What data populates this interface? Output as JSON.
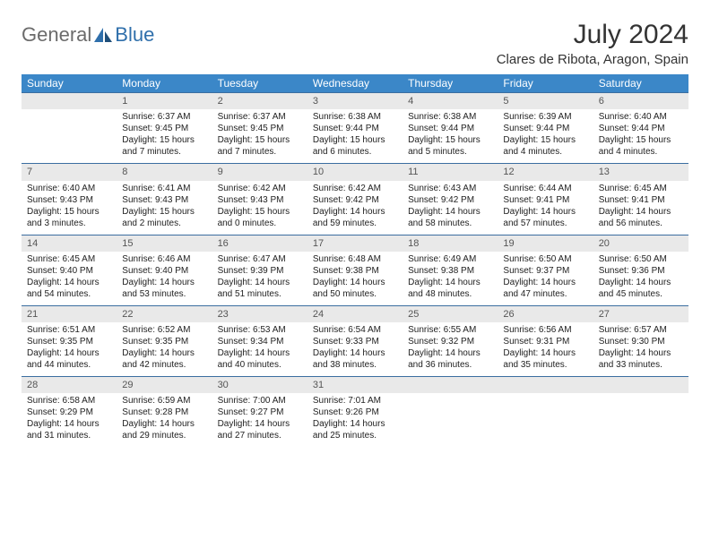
{
  "logo": {
    "general": "General",
    "blue": "Blue"
  },
  "header": {
    "month_title": "July 2024",
    "location": "Clares de Ribota, Aragon, Spain"
  },
  "colors": {
    "header_bg": "#3b87c8",
    "header_text": "#ffffff",
    "daynum_bg": "#e9e9e9",
    "daynum_text": "#555555",
    "body_text": "#222222",
    "row_separator": "#3b6ea0",
    "logo_gray": "#6b6b6b",
    "logo_blue": "#2f6fab"
  },
  "weekdays": [
    "Sunday",
    "Monday",
    "Tuesday",
    "Wednesday",
    "Thursday",
    "Friday",
    "Saturday"
  ],
  "weeks": [
    [
      {
        "num": "",
        "sunrise": "",
        "sunset": "",
        "daylight": ""
      },
      {
        "num": "1",
        "sunrise": "Sunrise: 6:37 AM",
        "sunset": "Sunset: 9:45 PM",
        "daylight": "Daylight: 15 hours and 7 minutes."
      },
      {
        "num": "2",
        "sunrise": "Sunrise: 6:37 AM",
        "sunset": "Sunset: 9:45 PM",
        "daylight": "Daylight: 15 hours and 7 minutes."
      },
      {
        "num": "3",
        "sunrise": "Sunrise: 6:38 AM",
        "sunset": "Sunset: 9:44 PM",
        "daylight": "Daylight: 15 hours and 6 minutes."
      },
      {
        "num": "4",
        "sunrise": "Sunrise: 6:38 AM",
        "sunset": "Sunset: 9:44 PM",
        "daylight": "Daylight: 15 hours and 5 minutes."
      },
      {
        "num": "5",
        "sunrise": "Sunrise: 6:39 AM",
        "sunset": "Sunset: 9:44 PM",
        "daylight": "Daylight: 15 hours and 4 minutes."
      },
      {
        "num": "6",
        "sunrise": "Sunrise: 6:40 AM",
        "sunset": "Sunset: 9:44 PM",
        "daylight": "Daylight: 15 hours and 4 minutes."
      }
    ],
    [
      {
        "num": "7",
        "sunrise": "Sunrise: 6:40 AM",
        "sunset": "Sunset: 9:43 PM",
        "daylight": "Daylight: 15 hours and 3 minutes."
      },
      {
        "num": "8",
        "sunrise": "Sunrise: 6:41 AM",
        "sunset": "Sunset: 9:43 PM",
        "daylight": "Daylight: 15 hours and 2 minutes."
      },
      {
        "num": "9",
        "sunrise": "Sunrise: 6:42 AM",
        "sunset": "Sunset: 9:43 PM",
        "daylight": "Daylight: 15 hours and 0 minutes."
      },
      {
        "num": "10",
        "sunrise": "Sunrise: 6:42 AM",
        "sunset": "Sunset: 9:42 PM",
        "daylight": "Daylight: 14 hours and 59 minutes."
      },
      {
        "num": "11",
        "sunrise": "Sunrise: 6:43 AM",
        "sunset": "Sunset: 9:42 PM",
        "daylight": "Daylight: 14 hours and 58 minutes."
      },
      {
        "num": "12",
        "sunrise": "Sunrise: 6:44 AM",
        "sunset": "Sunset: 9:41 PM",
        "daylight": "Daylight: 14 hours and 57 minutes."
      },
      {
        "num": "13",
        "sunrise": "Sunrise: 6:45 AM",
        "sunset": "Sunset: 9:41 PM",
        "daylight": "Daylight: 14 hours and 56 minutes."
      }
    ],
    [
      {
        "num": "14",
        "sunrise": "Sunrise: 6:45 AM",
        "sunset": "Sunset: 9:40 PM",
        "daylight": "Daylight: 14 hours and 54 minutes."
      },
      {
        "num": "15",
        "sunrise": "Sunrise: 6:46 AM",
        "sunset": "Sunset: 9:40 PM",
        "daylight": "Daylight: 14 hours and 53 minutes."
      },
      {
        "num": "16",
        "sunrise": "Sunrise: 6:47 AM",
        "sunset": "Sunset: 9:39 PM",
        "daylight": "Daylight: 14 hours and 51 minutes."
      },
      {
        "num": "17",
        "sunrise": "Sunrise: 6:48 AM",
        "sunset": "Sunset: 9:38 PM",
        "daylight": "Daylight: 14 hours and 50 minutes."
      },
      {
        "num": "18",
        "sunrise": "Sunrise: 6:49 AM",
        "sunset": "Sunset: 9:38 PM",
        "daylight": "Daylight: 14 hours and 48 minutes."
      },
      {
        "num": "19",
        "sunrise": "Sunrise: 6:50 AM",
        "sunset": "Sunset: 9:37 PM",
        "daylight": "Daylight: 14 hours and 47 minutes."
      },
      {
        "num": "20",
        "sunrise": "Sunrise: 6:50 AM",
        "sunset": "Sunset: 9:36 PM",
        "daylight": "Daylight: 14 hours and 45 minutes."
      }
    ],
    [
      {
        "num": "21",
        "sunrise": "Sunrise: 6:51 AM",
        "sunset": "Sunset: 9:35 PM",
        "daylight": "Daylight: 14 hours and 44 minutes."
      },
      {
        "num": "22",
        "sunrise": "Sunrise: 6:52 AM",
        "sunset": "Sunset: 9:35 PM",
        "daylight": "Daylight: 14 hours and 42 minutes."
      },
      {
        "num": "23",
        "sunrise": "Sunrise: 6:53 AM",
        "sunset": "Sunset: 9:34 PM",
        "daylight": "Daylight: 14 hours and 40 minutes."
      },
      {
        "num": "24",
        "sunrise": "Sunrise: 6:54 AM",
        "sunset": "Sunset: 9:33 PM",
        "daylight": "Daylight: 14 hours and 38 minutes."
      },
      {
        "num": "25",
        "sunrise": "Sunrise: 6:55 AM",
        "sunset": "Sunset: 9:32 PM",
        "daylight": "Daylight: 14 hours and 36 minutes."
      },
      {
        "num": "26",
        "sunrise": "Sunrise: 6:56 AM",
        "sunset": "Sunset: 9:31 PM",
        "daylight": "Daylight: 14 hours and 35 minutes."
      },
      {
        "num": "27",
        "sunrise": "Sunrise: 6:57 AM",
        "sunset": "Sunset: 9:30 PM",
        "daylight": "Daylight: 14 hours and 33 minutes."
      }
    ],
    [
      {
        "num": "28",
        "sunrise": "Sunrise: 6:58 AM",
        "sunset": "Sunset: 9:29 PM",
        "daylight": "Daylight: 14 hours and 31 minutes."
      },
      {
        "num": "29",
        "sunrise": "Sunrise: 6:59 AM",
        "sunset": "Sunset: 9:28 PM",
        "daylight": "Daylight: 14 hours and 29 minutes."
      },
      {
        "num": "30",
        "sunrise": "Sunrise: 7:00 AM",
        "sunset": "Sunset: 9:27 PM",
        "daylight": "Daylight: 14 hours and 27 minutes."
      },
      {
        "num": "31",
        "sunrise": "Sunrise: 7:01 AM",
        "sunset": "Sunset: 9:26 PM",
        "daylight": "Daylight: 14 hours and 25 minutes."
      },
      {
        "num": "",
        "sunrise": "",
        "sunset": "",
        "daylight": ""
      },
      {
        "num": "",
        "sunrise": "",
        "sunset": "",
        "daylight": ""
      },
      {
        "num": "",
        "sunrise": "",
        "sunset": "",
        "daylight": ""
      }
    ]
  ]
}
